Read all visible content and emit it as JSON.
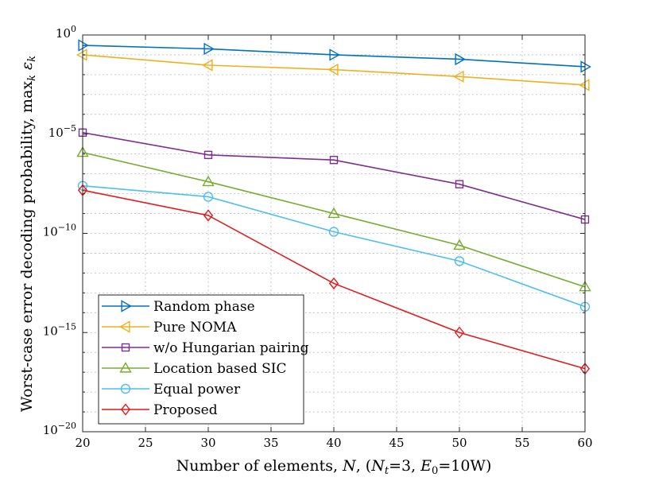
{
  "chart_data": {
    "type": "line",
    "yscale": "log",
    "x": [
      20,
      30,
      40,
      50,
      60
    ],
    "xlim": [
      20,
      60
    ],
    "ylim": [
      1e-20,
      1
    ],
    "x_ticks": [
      "20",
      "25",
      "30",
      "35",
      "40",
      "45",
      "50",
      "55",
      "60"
    ],
    "x_tick_values": [
      20,
      25,
      30,
      35,
      40,
      45,
      50,
      55,
      60
    ],
    "y_ticks": [
      {
        "value": 1,
        "base": "10",
        "exp": "0"
      },
      {
        "value": 1e-05,
        "base": "10",
        "exp": "−5"
      },
      {
        "value": 1e-10,
        "base": "10",
        "exp": "−10"
      },
      {
        "value": 1e-15,
        "base": "10",
        "exp": "−15"
      },
      {
        "value": 1e-20,
        "base": "10",
        "exp": "−20"
      }
    ],
    "xlabel": "Number of elements, N, (N_t=3, E_0=10W)",
    "ylabel": "Worst-case error decoding probability, max_k ε_k",
    "grid": true,
    "legend_position": "bottom-left",
    "series": [
      {
        "name": "Random phase",
        "color": "#0072BD",
        "marker": "triangle-right",
        "values": [
          0.3,
          0.2,
          0.1,
          0.06,
          0.025
        ]
      },
      {
        "name": "Pure NOMA",
        "color": "#EDB120",
        "marker": "triangle-left",
        "values": [
          0.1,
          0.03,
          0.018,
          0.008,
          0.003
        ]
      },
      {
        "name": "w/o Hungarian pairing",
        "color": "#7E2F8E",
        "marker": "square",
        "values": [
          1.2e-05,
          9e-07,
          5e-07,
          3e-08,
          5e-10
        ]
      },
      {
        "name": "Location based SIC",
        "color": "#77AC30",
        "marker": "triangle-up",
        "values": [
          1.2e-06,
          4e-08,
          1e-09,
          2.5e-11,
          2e-13
        ]
      },
      {
        "name": "Equal power",
        "color": "#4DBEEE",
        "marker": "circle",
        "values": [
          2.5e-08,
          7e-09,
          1.2e-10,
          4e-12,
          2e-14
        ]
      },
      {
        "name": "Proposed",
        "color": "#E31A1C",
        "marker": "diamond",
        "values": [
          1.5e-08,
          8e-10,
          3e-13,
          1e-15,
          1.5e-17
        ]
      }
    ]
  }
}
